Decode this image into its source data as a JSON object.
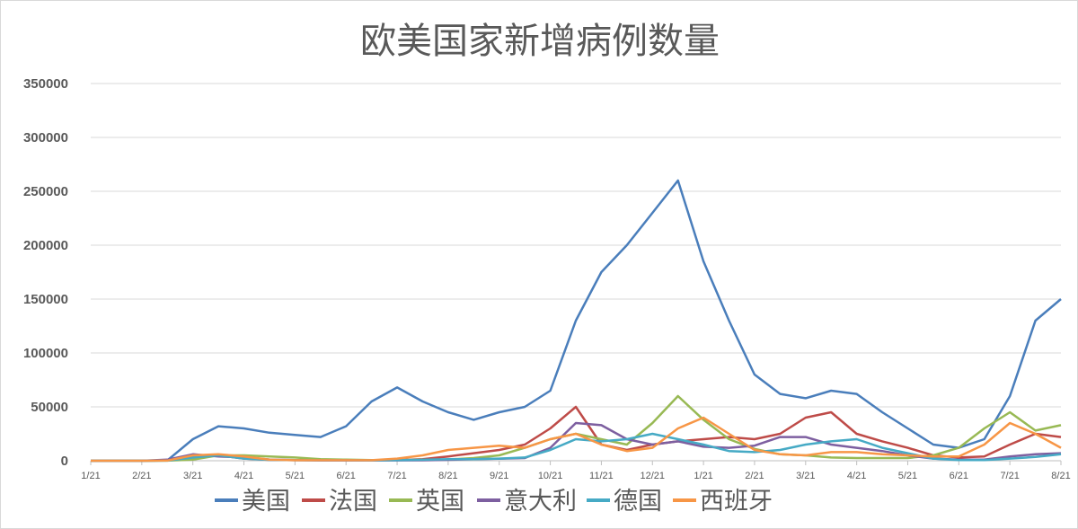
{
  "chart_data": {
    "type": "line",
    "title": "欧美国家新增病例数量",
    "xlabel": "",
    "ylabel": "",
    "ylim": [
      0,
      350000
    ],
    "yticks": [
      "0",
      "50000",
      "100000",
      "150000",
      "200000",
      "250000",
      "300000",
      "350000"
    ],
    "xtick_labels": [
      "1/21",
      "2/21",
      "3/21",
      "4/21",
      "5/21",
      "6/21",
      "7/21",
      "8/21",
      "9/21",
      "10/21",
      "11/21",
      "12/21",
      "1/21",
      "2/21",
      "3/21",
      "4/21",
      "5/21",
      "6/21",
      "7/21",
      "8/21"
    ],
    "x": [
      "1/21",
      "2/6",
      "2/21",
      "3/6",
      "3/21",
      "4/6",
      "4/21",
      "5/6",
      "5/21",
      "6/6",
      "6/21",
      "7/6",
      "7/21",
      "8/6",
      "8/21",
      "9/6",
      "9/21",
      "10/6",
      "10/21",
      "11/6",
      "11/21",
      "12/6",
      "12/21",
      "1/6",
      "1/21",
      "2/6",
      "2/21",
      "3/6",
      "3/21",
      "4/6",
      "4/21",
      "5/6",
      "5/21",
      "6/6",
      "6/21",
      "7/6",
      "7/21",
      "8/6",
      "8/21"
    ],
    "grid": true,
    "legend_position": "bottom",
    "series": [
      {
        "name": "美国",
        "color": "#4a7ebb",
        "values": [
          0,
          0,
          0,
          300,
          20000,
          32000,
          30000,
          26000,
          24000,
          22000,
          32000,
          55000,
          68000,
          55000,
          45000,
          38000,
          45000,
          50000,
          65000,
          130000,
          175000,
          200000,
          230000,
          260000,
          185000,
          130000,
          80000,
          62000,
          58000,
          65000,
          62000,
          45000,
          30000,
          15000,
          12000,
          20000,
          60000,
          130000,
          150000
        ]
      },
      {
        "name": "法国",
        "color": "#be4b48",
        "values": [
          0,
          0,
          0,
          300,
          3000,
          5000,
          2000,
          800,
          500,
          500,
          500,
          500,
          600,
          1500,
          4000,
          7000,
          10000,
          15000,
          30000,
          50000,
          15000,
          10000,
          15000,
          18000,
          20000,
          22000,
          20000,
          25000,
          40000,
          45000,
          25000,
          18000,
          12000,
          5000,
          3000,
          4000,
          15000,
          25000,
          22000
        ]
      },
      {
        "name": "英国",
        "color": "#98b954",
        "values": [
          0,
          0,
          0,
          50,
          1000,
          5000,
          5000,
          4000,
          3000,
          1500,
          1000,
          600,
          700,
          900,
          1200,
          2500,
          5000,
          12000,
          20000,
          25000,
          20000,
          15000,
          35000,
          60000,
          38000,
          20000,
          11000,
          6000,
          5000,
          3000,
          2500,
          2500,
          2500,
          5000,
          12000,
          30000,
          45000,
          28000,
          33000
        ]
      },
      {
        "name": "意大利",
        "color": "#7d5fa0",
        "values": [
          0,
          0,
          0,
          1000,
          6000,
          4000,
          3000,
          1200,
          600,
          300,
          300,
          300,
          300,
          400,
          800,
          1500,
          1800,
          2500,
          12000,
          35000,
          33000,
          20000,
          15000,
          18000,
          13000,
          12000,
          14000,
          22000,
          22000,
          15000,
          12000,
          9000,
          5000,
          2000,
          1000,
          1000,
          4000,
          6000,
          7000
        ]
      },
      {
        "name": "德国",
        "color": "#46aac5",
        "values": [
          0,
          0,
          0,
          100,
          3000,
          5000,
          2000,
          800,
          500,
          500,
          500,
          400,
          500,
          900,
          1500,
          1500,
          2000,
          3000,
          10000,
          20000,
          18000,
          20000,
          25000,
          20000,
          15000,
          9000,
          8000,
          10000,
          15000,
          18000,
          20000,
          12000,
          7000,
          2000,
          700,
          700,
          2000,
          3500,
          6000
        ]
      },
      {
        "name": "西班牙",
        "color": "#f79646",
        "values": [
          0,
          0,
          0,
          200,
          5000,
          6000,
          4000,
          1000,
          500,
          500,
          500,
          500,
          2000,
          5000,
          10000,
          12000,
          14000,
          12000,
          20000,
          25000,
          15000,
          9000,
          12000,
          30000,
          40000,
          25000,
          10000,
          6000,
          5000,
          8000,
          8000,
          6000,
          5000,
          4000,
          4000,
          15000,
          35000,
          25000,
          12000
        ]
      }
    ]
  }
}
